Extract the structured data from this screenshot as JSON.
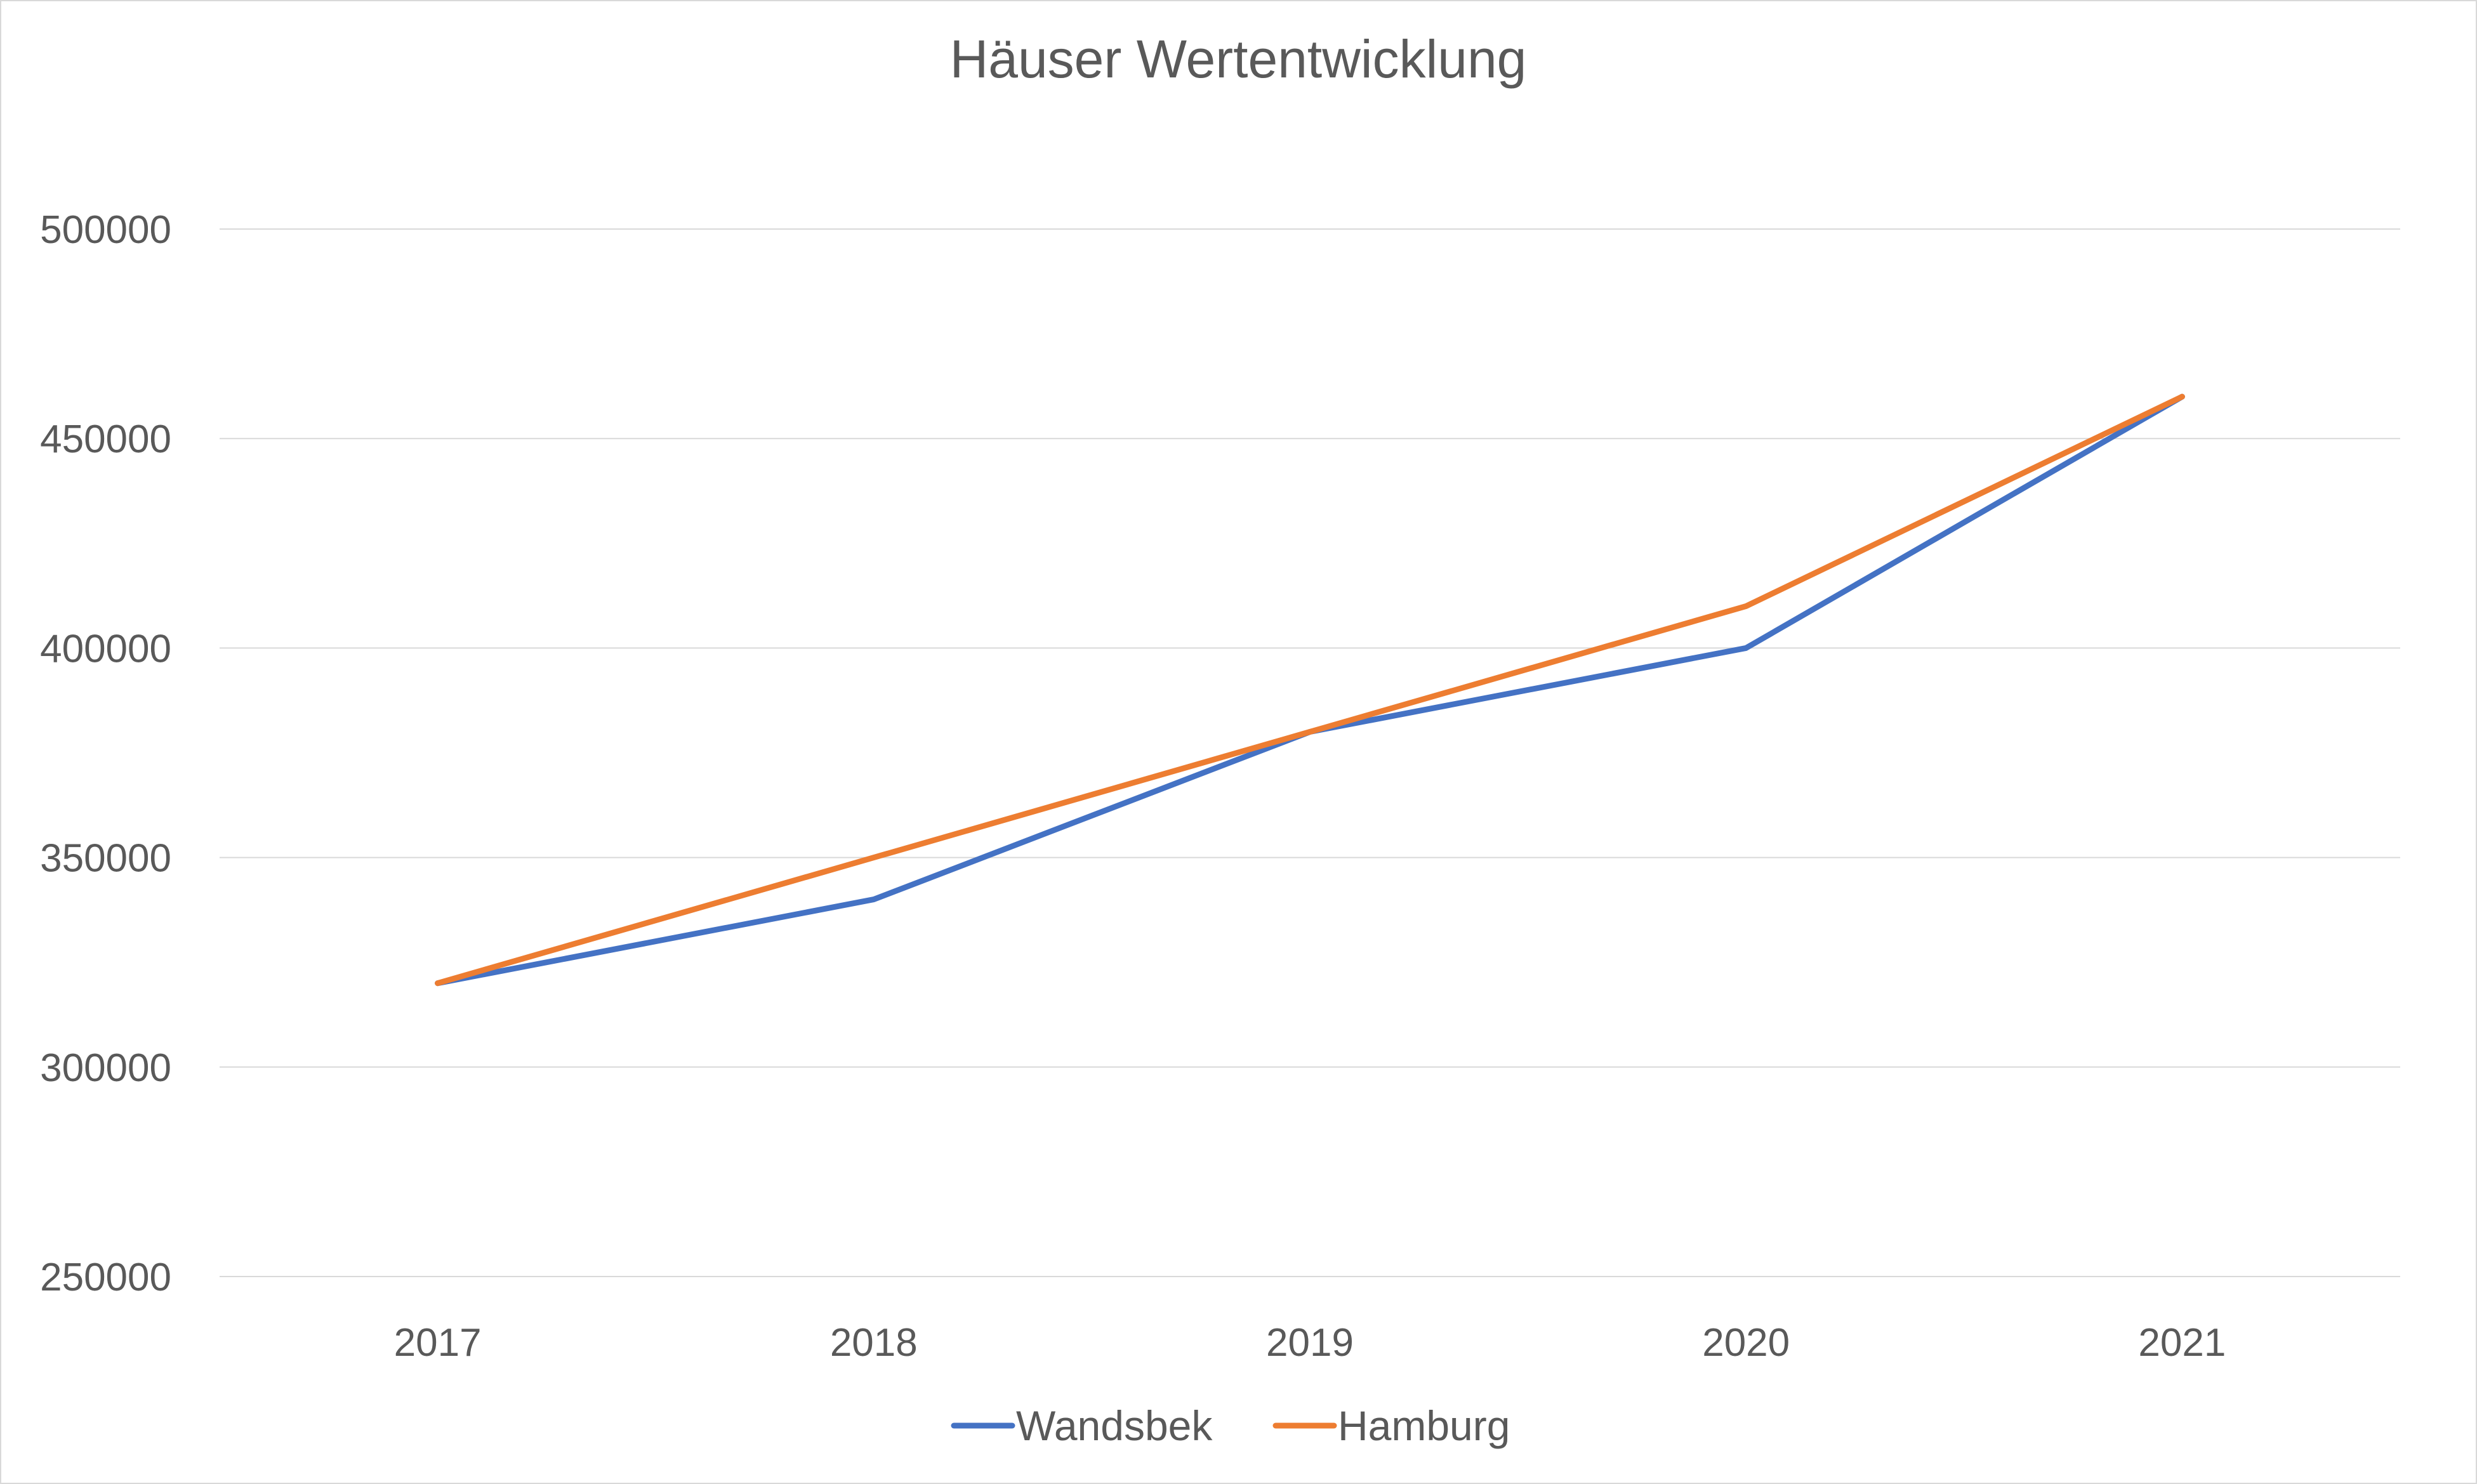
{
  "chart_data": {
    "type": "line",
    "title": "Häuser Wertentwicklung",
    "xlabel": "",
    "ylabel": "",
    "categories": [
      "2017",
      "2018",
      "2019",
      "2020",
      "2021"
    ],
    "series": [
      {
        "name": "Wandsbek",
        "values": [
          320000,
          340000,
          380000,
          400000,
          460000
        ],
        "color": "#4472c4"
      },
      {
        "name": "Hamburg",
        "values": [
          320000,
          350000,
          380000,
          410000,
          460000
        ],
        "color": "#ed7d31"
      }
    ],
    "ylim": [
      250000,
      500000
    ],
    "yticks": [
      "500000",
      "450000",
      "400000",
      "350000",
      "300000",
      "250000"
    ],
    "grid": true,
    "legend_position": "bottom",
    "colors": {
      "gridline": "#d9d9d9",
      "text": "#595959",
      "border": "#d9d9d9"
    }
  }
}
